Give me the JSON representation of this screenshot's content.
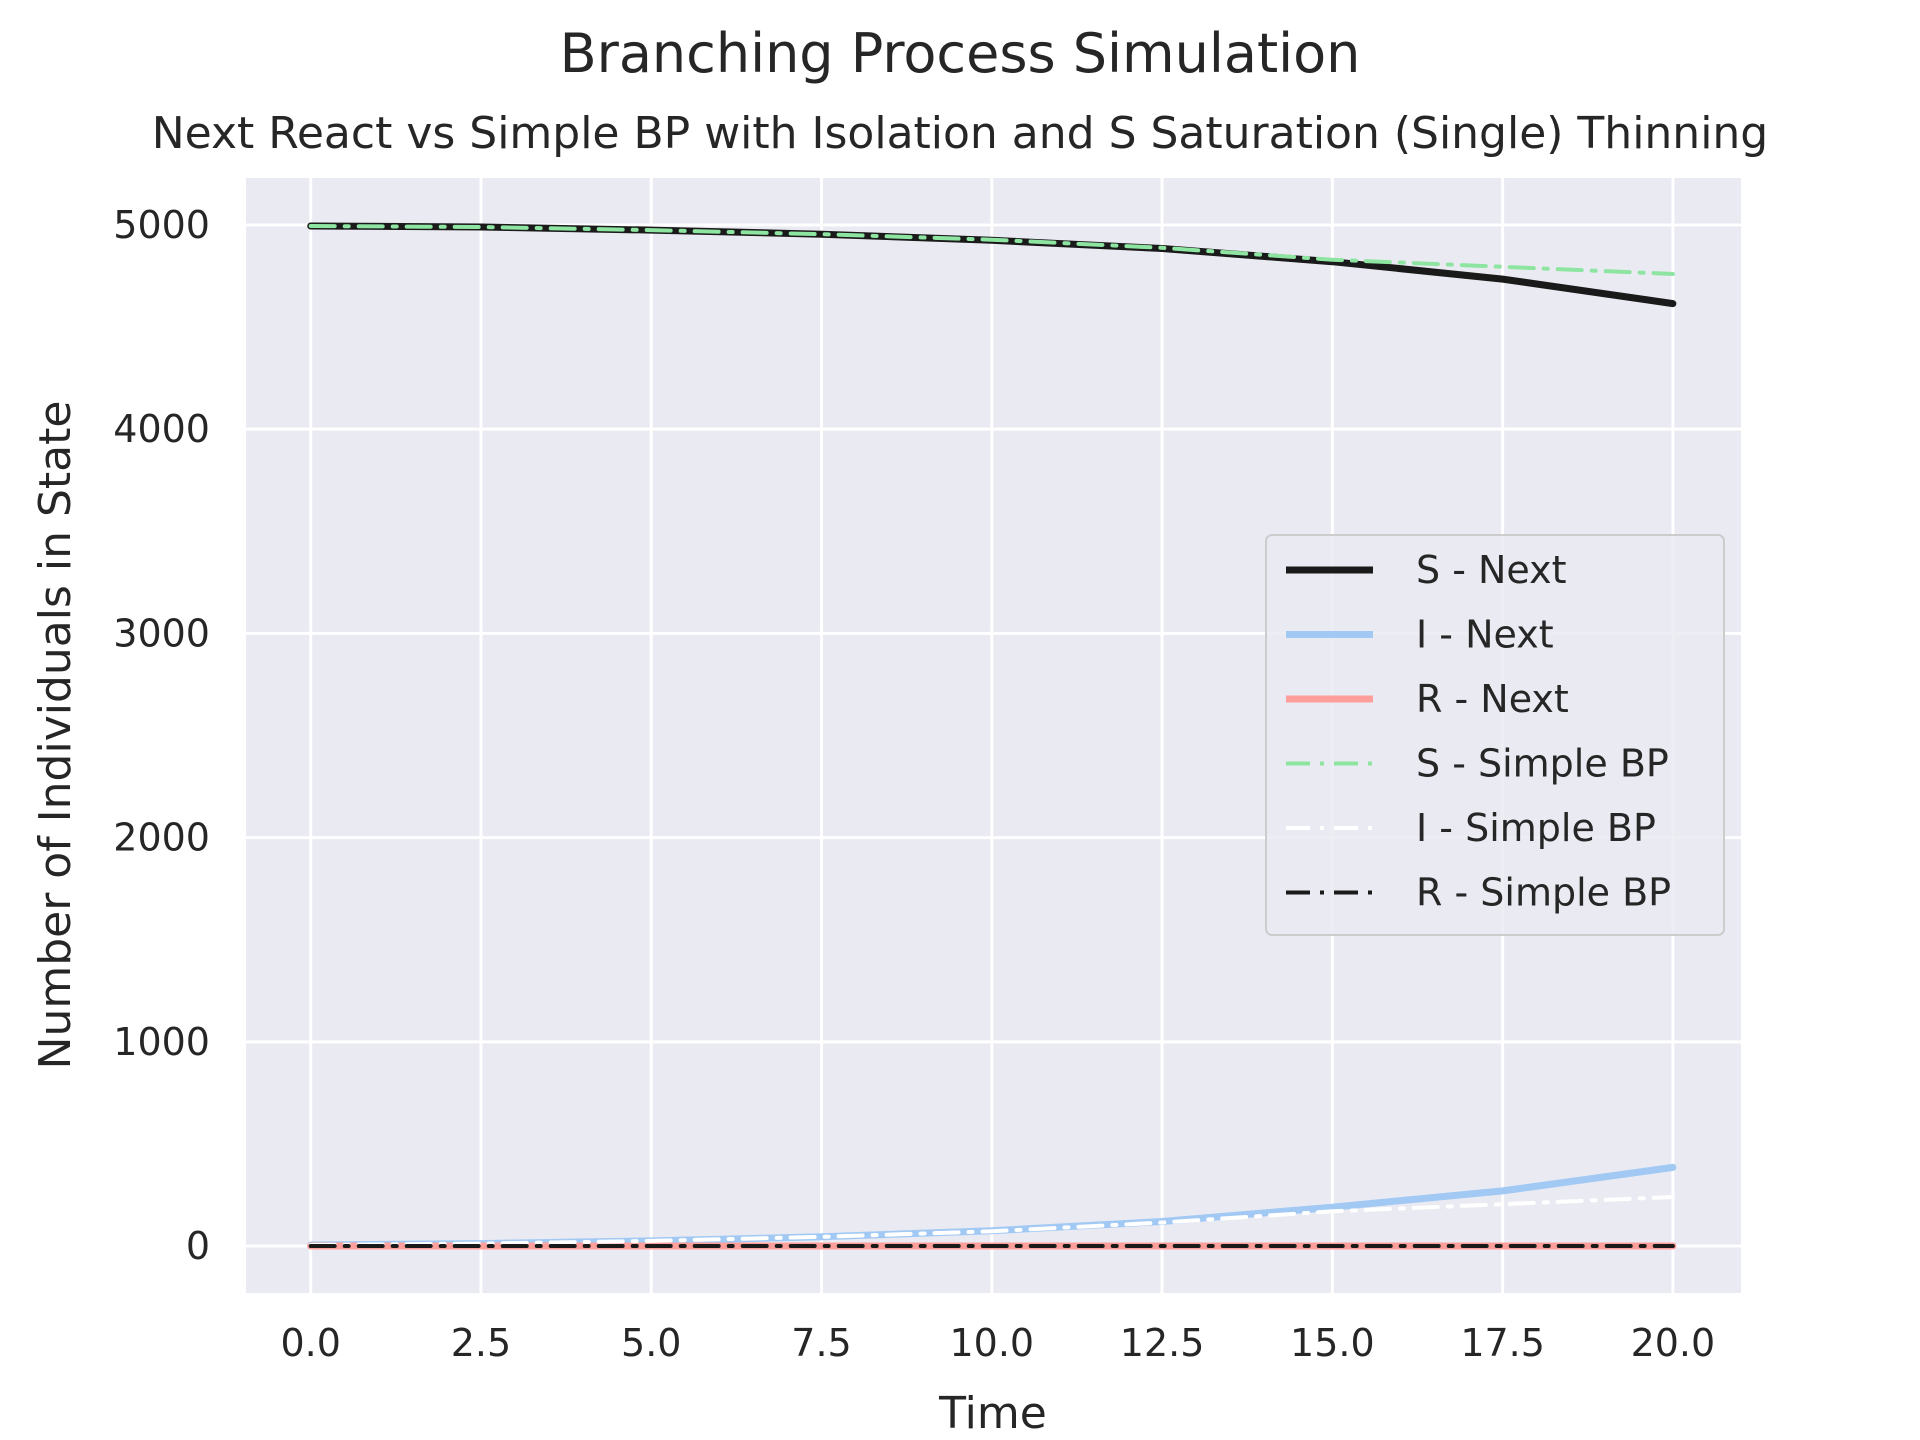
{
  "chart_data": {
    "type": "line",
    "suptitle": "Branching Process Simulation",
    "title": "Next React vs Simple BP with Isolation and S Saturation (Single) Thinning",
    "xlabel": "Time",
    "ylabel": "Number of Individuals in State",
    "xlim": [
      -0.95,
      21.0
    ],
    "ylim": [
      -230,
      5230
    ],
    "xticks": [
      0.0,
      2.5,
      5.0,
      7.5,
      10.0,
      12.5,
      15.0,
      17.5,
      20.0
    ],
    "xtick_labels": [
      "0.0",
      "2.5",
      "5.0",
      "7.5",
      "10.0",
      "12.5",
      "15.0",
      "17.5",
      "20.0"
    ],
    "yticks": [
      0,
      1000,
      2000,
      3000,
      4000,
      5000
    ],
    "ytick_labels": [
      "0",
      "1000",
      "2000",
      "3000",
      "4000",
      "5000"
    ],
    "grid": true,
    "legend_position": "center-right",
    "x": [
      0,
      2.5,
      5,
      7.5,
      10,
      12.5,
      15,
      17.5,
      20
    ],
    "series": [
      {
        "name": "S - Next",
        "color": "#1a1a1a",
        "style": "solid",
        "values": [
          4995,
          4990,
          4975,
          4955,
          4925,
          4885,
          4820,
          4735,
          4615
        ]
      },
      {
        "name": "I - Next",
        "color": "#a1c9f4",
        "style": "solid",
        "values": [
          5,
          12,
          25,
          45,
          75,
          120,
          190,
          270,
          385
        ]
      },
      {
        "name": "R - Next",
        "color": "#ff9f9b",
        "style": "solid",
        "values": [
          0,
          0,
          0,
          0,
          0,
          0,
          0,
          0,
          0
        ]
      },
      {
        "name": "S - Simple BP",
        "color": "#8de5a1",
        "style": "dashdot",
        "values": [
          4995,
          4990,
          4975,
          4955,
          4928,
          4888,
          4830,
          4795,
          4760
        ]
      },
      {
        "name": "I - Simple BP",
        "color": "#ffffff",
        "style": "dashdot",
        "values": [
          5,
          12,
          25,
          45,
          72,
          115,
          170,
          205,
          240
        ]
      },
      {
        "name": "R - Simple BP",
        "color": "#1a1a1a",
        "style": "dashdot",
        "values": [
          0,
          0,
          0,
          0,
          0,
          0,
          0,
          0,
          0
        ]
      }
    ]
  }
}
